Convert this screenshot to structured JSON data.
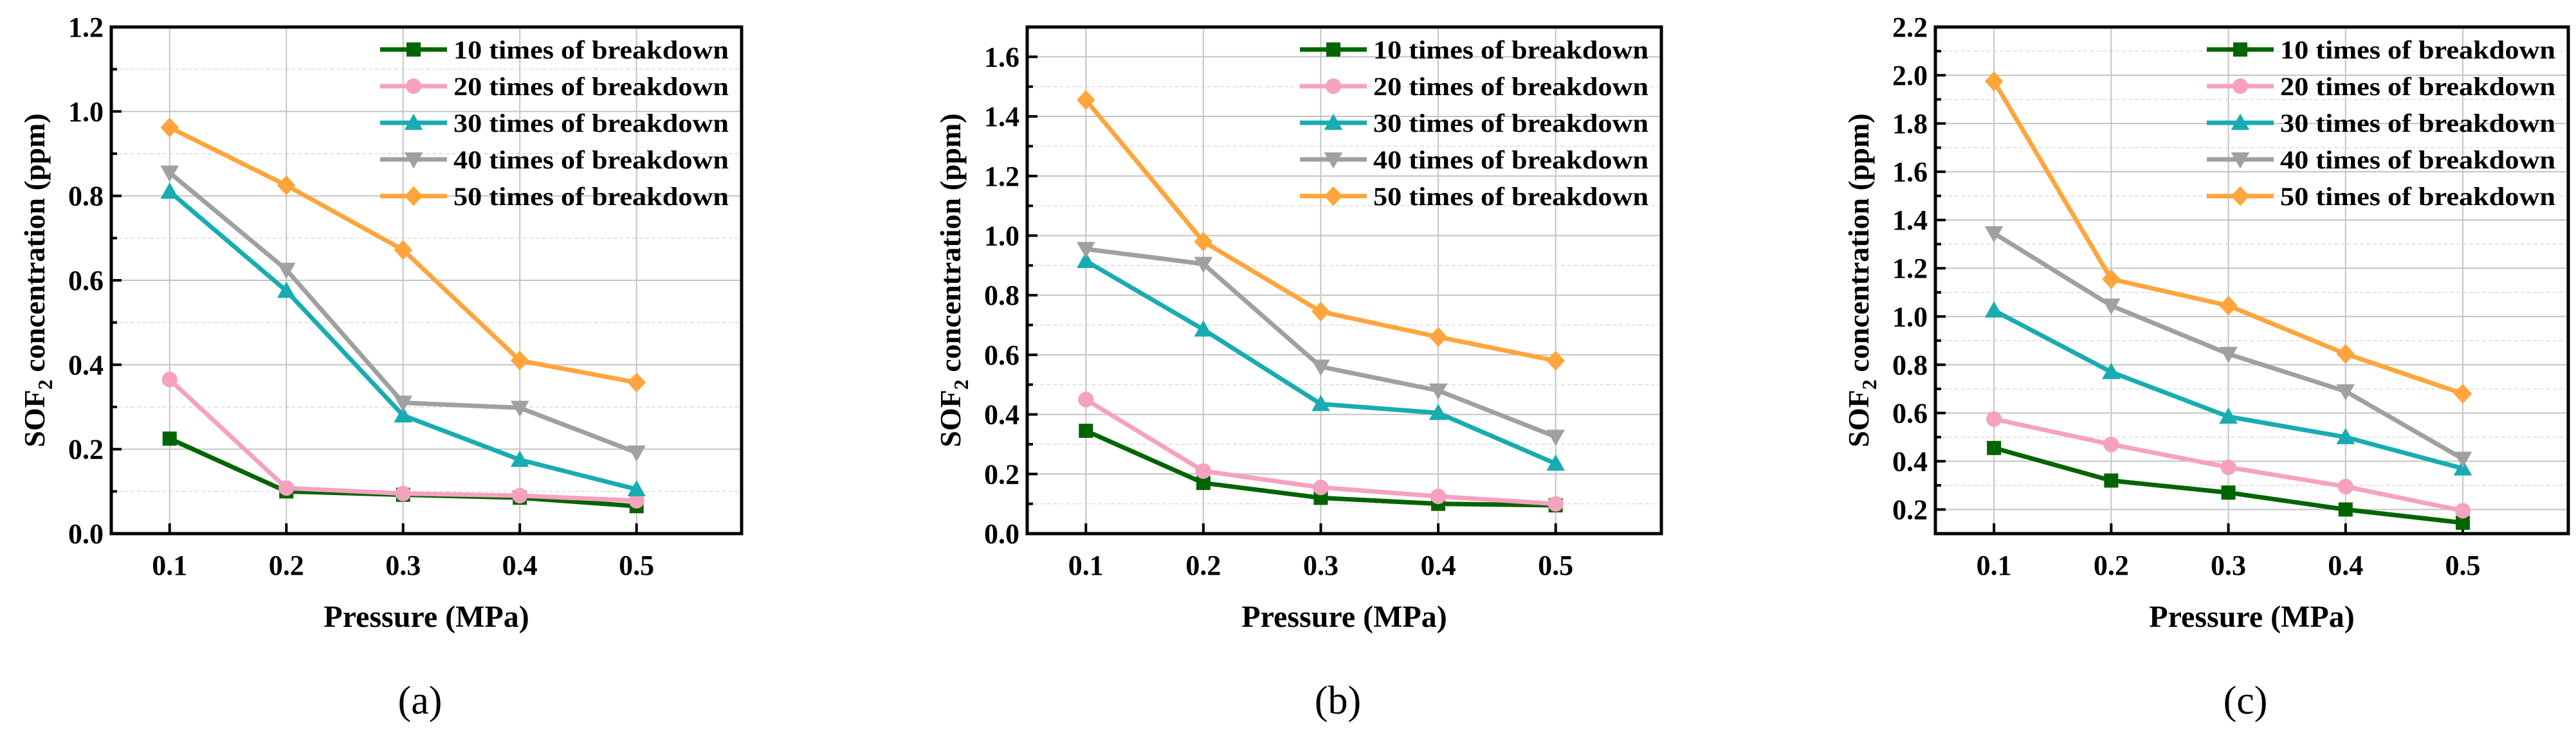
{
  "chart_data": [
    {
      "type": "line",
      "panel_label": "(a)",
      "xlabel": "Pressure (MPa)",
      "ylabel_main": "SOF",
      "ylabel_sub": "2",
      "ylabel_rest": " concentration (ppm)",
      "x": [
        0.1,
        0.2,
        0.3,
        0.4,
        0.5
      ],
      "x_ticks": [
        "0.1",
        "0.2",
        "0.3",
        "0.4",
        "0.5"
      ],
      "xlim": [
        0.05,
        0.59
      ],
      "ylim": [
        0,
        1.2
      ],
      "y_ticks": [
        0,
        0.2,
        0.4,
        0.6,
        0.8,
        1.0,
        1.2
      ],
      "y_tick_labels": [
        "0.0",
        "0.2",
        "0.4",
        "0.6",
        "0.8",
        "1.0",
        "1.2"
      ],
      "grid": true,
      "legend_position": "top-right",
      "series": [
        {
          "name": "10 times of breakdown",
          "color": "#006400",
          "marker": "square",
          "values": [
            0.225,
            0.1,
            0.092,
            0.085,
            0.065
          ]
        },
        {
          "name": "20 times of breakdown",
          "color": "#f7a1c0",
          "marker": "circle",
          "values": [
            0.365,
            0.108,
            0.095,
            0.09,
            0.078
          ]
        },
        {
          "name": "30 times of breakdown",
          "color": "#18acb2",
          "marker": "triangle-up",
          "values": [
            0.81,
            0.575,
            0.28,
            0.175,
            0.105
          ]
        },
        {
          "name": "40 times of breakdown",
          "color": "#a0a0a0",
          "marker": "triangle-down",
          "values": [
            0.855,
            0.625,
            0.31,
            0.298,
            0.192
          ]
        },
        {
          "name": "50 times of breakdown",
          "color": "#ffa53b",
          "marker": "diamond",
          "values": [
            0.962,
            0.825,
            0.672,
            0.41,
            0.358
          ]
        }
      ]
    },
    {
      "type": "line",
      "panel_label": "(b)",
      "xlabel": "Pressure (MPa)",
      "ylabel_main": "SOF",
      "ylabel_sub": "2",
      "ylabel_rest": " concentration (ppm)",
      "x": [
        0.1,
        0.2,
        0.3,
        0.4,
        0.5
      ],
      "x_ticks": [
        "0.1",
        "0.2",
        "0.3",
        "0.4",
        "0.5"
      ],
      "xlim": [
        0.05,
        0.59
      ],
      "ylim": [
        0,
        1.7
      ],
      "y_ticks": [
        0,
        0.2,
        0.4,
        0.6,
        0.8,
        1.0,
        1.2,
        1.4,
        1.6
      ],
      "y_tick_labels": [
        "0.0",
        "0.2",
        "0.4",
        "0.6",
        "0.8",
        "1.0",
        "1.2",
        "1.4",
        "1.6"
      ],
      "grid": true,
      "legend_position": "top-right",
      "series": [
        {
          "name": "10 times of breakdown",
          "color": "#006400",
          "marker": "square",
          "values": [
            0.345,
            0.17,
            0.12,
            0.1,
            0.095
          ]
        },
        {
          "name": "20 times of breakdown",
          "color": "#f7a1c0",
          "marker": "circle",
          "values": [
            0.45,
            0.21,
            0.155,
            0.125,
            0.1
          ]
        },
        {
          "name": "30 times of breakdown",
          "color": "#18acb2",
          "marker": "triangle-up",
          "values": [
            0.915,
            0.685,
            0.435,
            0.405,
            0.235
          ]
        },
        {
          "name": "40 times of breakdown",
          "color": "#a0a0a0",
          "marker": "triangle-down",
          "values": [
            0.955,
            0.905,
            0.56,
            0.48,
            0.325
          ]
        },
        {
          "name": "50 times of breakdown",
          "color": "#ffa53b",
          "marker": "diamond",
          "values": [
            1.455,
            0.98,
            0.745,
            0.66,
            0.58
          ]
        }
      ]
    },
    {
      "type": "line",
      "panel_label": "(c)",
      "xlabel": "Pressure (MPa)",
      "ylabel_main": "SOF",
      "ylabel_sub": "2",
      "ylabel_rest": " concentration (ppm)",
      "x": [
        0.1,
        0.2,
        0.3,
        0.4,
        0.5
      ],
      "x_ticks": [
        "0.1",
        "0.2",
        "0.3",
        "0.4",
        "0.5"
      ],
      "xlim": [
        0.05,
        0.59
      ],
      "ylim": [
        0.1,
        2.2
      ],
      "y_ticks": [
        0.2,
        0.4,
        0.6,
        0.8,
        1.0,
        1.2,
        1.4,
        1.6,
        1.8,
        2.0,
        2.2
      ],
      "y_tick_labels": [
        "0.2",
        "0.4",
        "0.6",
        "0.8",
        "1.0",
        "1.2",
        "1.4",
        "1.6",
        "1.8",
        "2.0",
        "2.2"
      ],
      "grid": true,
      "legend_position": "top-right",
      "series": [
        {
          "name": "10 times of breakdown",
          "color": "#006400",
          "marker": "square",
          "values": [
            0.455,
            0.32,
            0.27,
            0.2,
            0.145
          ]
        },
        {
          "name": "20 times of breakdown",
          "color": "#f7a1c0",
          "marker": "circle",
          "values": [
            0.575,
            0.47,
            0.375,
            0.295,
            0.195
          ]
        },
        {
          "name": "30 times of breakdown",
          "color": "#18acb2",
          "marker": "triangle-up",
          "values": [
            1.025,
            0.77,
            0.585,
            0.5,
            0.37
          ]
        },
        {
          "name": "40 times of breakdown",
          "color": "#a0a0a0",
          "marker": "triangle-down",
          "values": [
            1.345,
            1.045,
            0.845,
            0.69,
            0.41
          ]
        },
        {
          "name": "50 times of breakdown",
          "color": "#ffa53b",
          "marker": "diamond",
          "values": [
            1.975,
            1.155,
            1.045,
            0.845,
            0.68
          ]
        }
      ]
    }
  ]
}
